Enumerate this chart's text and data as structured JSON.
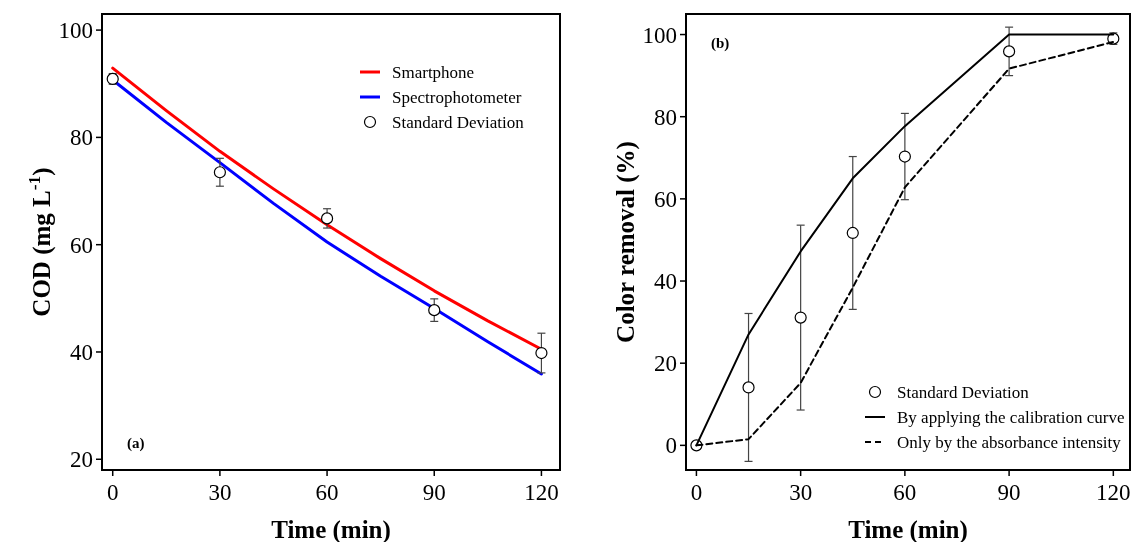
{
  "chart_data": [
    {
      "type": "line",
      "xlabel": "Time (min)",
      "ylabel": "COD (mg L$^{-1}$)",
      "xlim": [
        -3,
        125.2
      ],
      "ylim": [
        18,
        103
      ],
      "xticks": [
        0,
        30,
        60,
        90,
        120
      ],
      "yticks": [
        20,
        40,
        60,
        80,
        100
      ],
      "grid": false,
      "legend": "top right",
      "annotations": [
        "(a)"
      ],
      "series": [
        {
          "name": "Smartphone",
          "color": "#ff0000",
          "line_style": "solid",
          "x": [
            0,
            15,
            30,
            45,
            60,
            75,
            90,
            105,
            120
          ],
          "values": [
            92.9,
            85.0,
            77.4,
            70.4,
            63.7,
            57.4,
            51.4,
            45.8,
            40.5
          ]
        },
        {
          "name": "Spectrophotometer",
          "color": "#0000ff",
          "line_style": "solid",
          "x": [
            0,
            15,
            30,
            45,
            60,
            75,
            90,
            105,
            120
          ],
          "values": [
            90.7,
            82.8,
            75.3,
            67.7,
            60.5,
            54.1,
            48.1,
            41.9,
            35.9
          ]
        },
        {
          "name": "Standard Deviation",
          "type": "scatter",
          "color": "#000000",
          "marker": "circle",
          "x": [
            0,
            30,
            60,
            90,
            120
          ],
          "values": [
            90.9,
            73.5,
            64.9,
            47.8,
            39.8
          ],
          "errors": [
            1.0,
            2.6,
            1.8,
            2.1,
            3.7
          ]
        }
      ]
    },
    {
      "type": "line",
      "xlabel": "Time (min)",
      "ylabel": "Color removal (%)",
      "xlim": [
        -3,
        124.8
      ],
      "ylim": [
        -6,
        105
      ],
      "xticks": [
        0,
        30,
        60,
        90,
        120
      ],
      "yticks": [
        0,
        20,
        40,
        60,
        80,
        100
      ],
      "grid": false,
      "legend": "bottom right",
      "annotations": [
        "(b)"
      ],
      "series": [
        {
          "name": "Standard Deviation",
          "type": "scatter",
          "color": "#000000",
          "marker": "circle",
          "x": [
            0,
            15,
            30,
            45,
            60,
            90,
            120
          ],
          "values": [
            0,
            14.1,
            31.1,
            51.7,
            70.3,
            95.9,
            99.0
          ],
          "errors": [
            null,
            18,
            22.5,
            18.6,
            10.5,
            5.9,
            1.4
          ]
        },
        {
          "name": "By applying the calibration curve",
          "color": "#000000",
          "line_style": "solid",
          "x": [
            0,
            15,
            30,
            45,
            60,
            90,
            120
          ],
          "values": [
            0,
            27,
            47.2,
            65,
            77.7,
            100,
            100
          ]
        },
        {
          "name": "Only by the absorbance intensity",
          "color": "#000000",
          "line_style": "dashed",
          "x": [
            0,
            15,
            30,
            45,
            60,
            90,
            120
          ],
          "values": [
            0,
            1.5,
            15.2,
            38.4,
            62.8,
            91.7,
            98.2
          ]
        }
      ]
    }
  ]
}
